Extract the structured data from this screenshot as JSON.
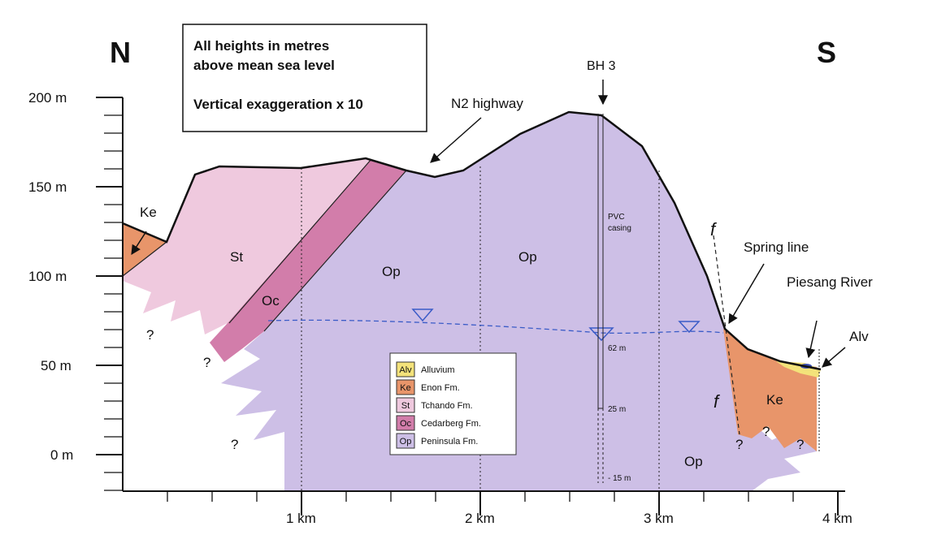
{
  "header": {
    "north": "N",
    "south": "S"
  },
  "note": {
    "lines": [
      "All heights in metres",
      "above mean sea level",
      "Vertical exaggeration x 10"
    ]
  },
  "y_axis": {
    "labels": [
      "200 m",
      "150 m",
      "100 m",
      "50 m",
      "0 m"
    ]
  },
  "x_axis": {
    "labels": [
      "1 km",
      "2 km",
      "3 km",
      "4 km"
    ]
  },
  "annotations": {
    "bh3": "BH 3",
    "highway": "N2 highway",
    "spring_line": "Spring line",
    "river": "Piesang River",
    "alluvium": "Alv",
    "casing": [
      "PVC",
      "casing"
    ],
    "depths": [
      "62 m",
      "25 m",
      "- 15 m"
    ],
    "fault": "f"
  },
  "units": [
    "Ke",
    "St",
    "Oc",
    "Op",
    "Op",
    "Op",
    "Ke"
  ],
  "unknown": "?",
  "legend": [
    {
      "code": "Alv",
      "name": "Alluvium",
      "color": "#f3e27a"
    },
    {
      "code": "Ke",
      "name": "Enon Fm.",
      "color": "#e8956a"
    },
    {
      "code": "St",
      "name": "Tchando Fm.",
      "color": "#efc9de"
    },
    {
      "code": "Oc",
      "name": "Cedarberg Fm.",
      "color": "#d27daa"
    },
    {
      "code": "Op",
      "name": "Peninsula Fm.",
      "color": "#cdbfe6"
    }
  ]
}
